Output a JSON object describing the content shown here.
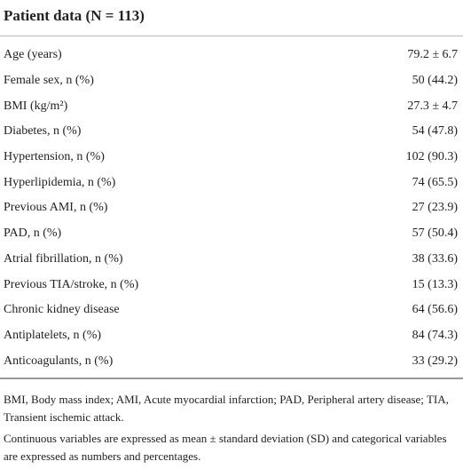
{
  "header": {
    "title": "Patient data (N = 113)"
  },
  "table": {
    "rows": [
      [
        "Age (years)",
        "79.2 ± 6.7"
      ],
      [
        "Female sex, n (%)",
        "50 (44.2)"
      ],
      [
        "BMI (kg/m²)",
        "27.3 ± 4.7"
      ],
      [
        "Diabetes, n (%)",
        "54 (47.8)"
      ],
      [
        "Hypertension, n (%)",
        "102 (90.3)"
      ],
      [
        "Hyperlipidemia, n (%)",
        "74 (65.5)"
      ],
      [
        "Previous AMI, n (%)",
        "27 (23.9)"
      ],
      [
        "PAD, n (%)",
        "57 (50.4)"
      ],
      [
        "Atrial fibrillation, n (%)",
        "38 (33.6)"
      ],
      [
        "Previous TIA/stroke, n (%)",
        "15 (13.3)"
      ],
      [
        "Chronic kidney disease",
        "64 (56.6)"
      ],
      [
        "Antiplatelets, n (%)",
        "84 (74.3)"
      ],
      [
        "Anticoagulants, n (%)",
        "33 (29.2)"
      ]
    ]
  },
  "footnotes": [
    "BMI, Body mass index; AMI, Acute myocardial infarction; PAD, Peripheral artery disease; TIA, Transient ischemic attack.",
    "Continuous variables are expressed as mean ± standard deviation (SD) and categorical variables are expressed as numbers and percentages."
  ]
}
